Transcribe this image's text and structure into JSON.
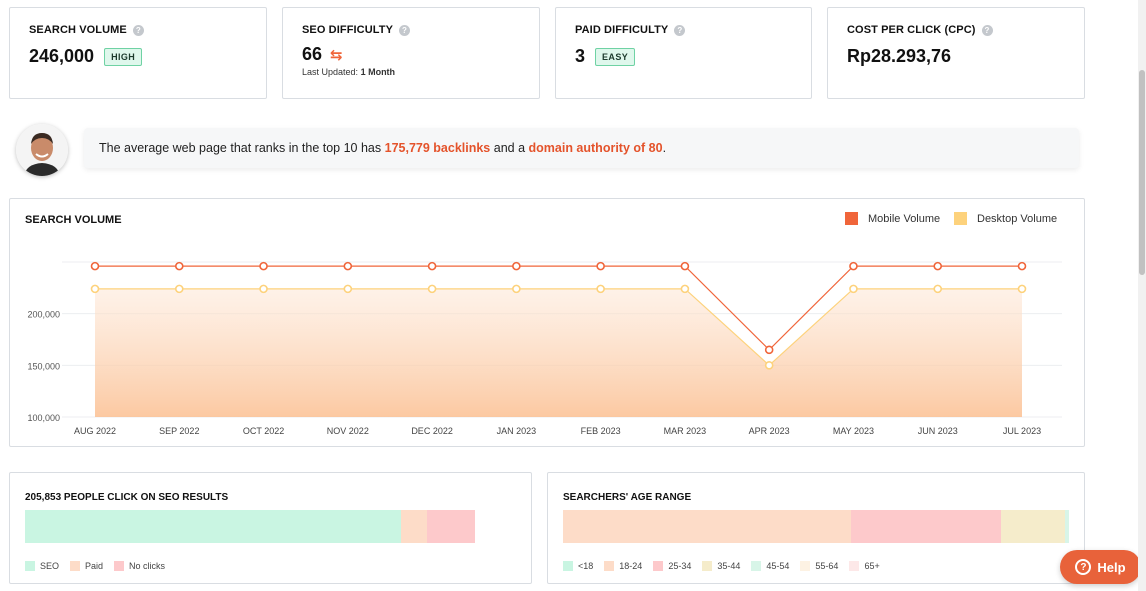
{
  "metrics": {
    "search_volume": {
      "label": "SEARCH VOLUME",
      "value": "246,000",
      "badge": "HIGH"
    },
    "seo_difficulty": {
      "label": "SEO DIFFICULTY",
      "value": "66",
      "updated_prefix": "Last Updated:",
      "updated_value": "1 Month"
    },
    "paid_difficulty": {
      "label": "PAID DIFFICULTY",
      "value": "3",
      "badge": "EASY"
    },
    "cpc": {
      "label": "COST PER CLICK (CPC)",
      "value": "Rp28.293,76"
    }
  },
  "banner": {
    "prefix": "The average web page that ranks in the top 10 has",
    "backlinks": "175,779 backlinks",
    "middle": "and a",
    "authority": "domain authority of 80",
    "suffix": "."
  },
  "chart_data": {
    "type": "line",
    "title": "SEARCH VOLUME",
    "categories": [
      "AUG 2022",
      "SEP 2022",
      "OCT 2022",
      "NOV 2022",
      "DEC 2022",
      "JAN 2023",
      "FEB 2023",
      "MAR 2023",
      "APR 2023",
      "MAY 2023",
      "JUN 2023",
      "JUL 2023"
    ],
    "series": [
      {
        "name": "Mobile Volume",
        "color": "#f0653a",
        "values": [
          246000,
          246000,
          246000,
          246000,
          246000,
          246000,
          246000,
          246000,
          165000,
          246000,
          246000,
          246000
        ]
      },
      {
        "name": "Desktop Volume",
        "color": "#fdd27c",
        "values": [
          224000,
          224000,
          224000,
          224000,
          224000,
          224000,
          224000,
          224000,
          150000,
          224000,
          224000,
          224000
        ]
      }
    ],
    "yticks": [
      "100,000",
      "150,000",
      "200,000"
    ],
    "ytick_values": [
      100000,
      150000,
      200000
    ],
    "ylim": [
      100000,
      250000
    ],
    "legend_position": "top-right",
    "grid": true
  },
  "clicks": {
    "title": "205,853 PEOPLE CLICK ON SEO RESULTS",
    "segments": [
      {
        "name": "SEO",
        "share": 0.836,
        "color": "#c9f5e2"
      },
      {
        "name": "Paid",
        "share": 0.058,
        "color": "#fddcc8"
      },
      {
        "name": "No clicks",
        "share": 0.106,
        "color": "#fdc9cb"
      }
    ]
  },
  "age": {
    "title": "SEARCHERS' AGE RANGE",
    "segments": [
      {
        "name": "<18",
        "share": 0.0,
        "color": "#c9f5e2"
      },
      {
        "name": "18-24",
        "share": 0.57,
        "color": "#fddcc8"
      },
      {
        "name": "25-34",
        "share": 0.295,
        "color": "#fdc9cb"
      },
      {
        "name": "35-44",
        "share": 0.127,
        "color": "#f5eccb"
      },
      {
        "name": "45-54",
        "share": 0.008,
        "color": "#d8f5e8"
      },
      {
        "name": "55-64",
        "share": 0.0,
        "color": "#fdf2e3"
      },
      {
        "name": "65+",
        "share": 0.0,
        "color": "#fde8e8"
      }
    ]
  },
  "help_button": {
    "label": "Help"
  }
}
